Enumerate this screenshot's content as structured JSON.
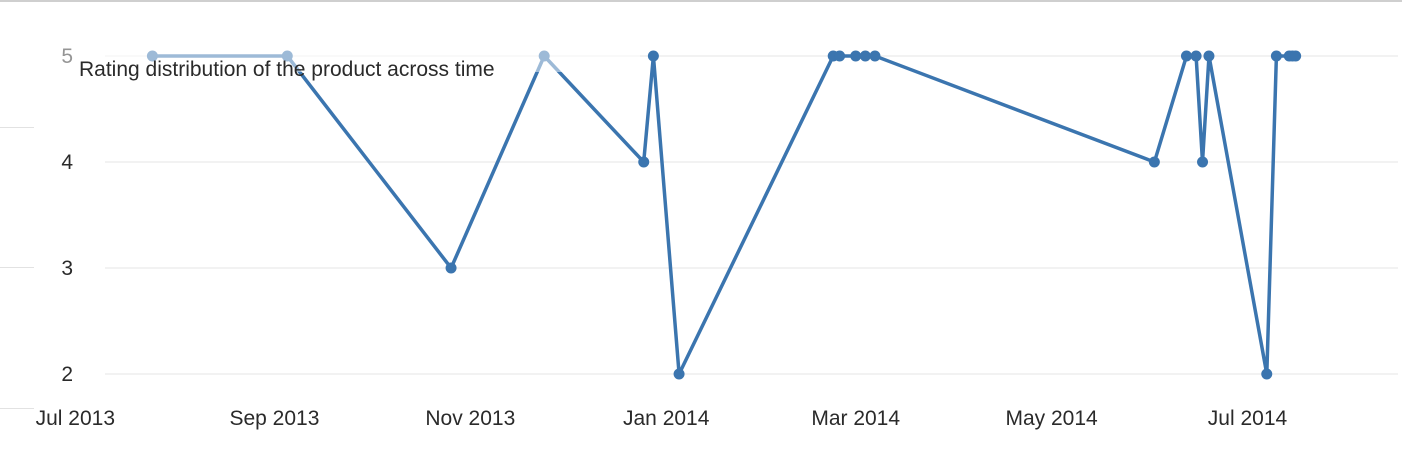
{
  "chart_data": {
    "type": "line",
    "title": "Rating distribution of the product across time",
    "xlabel": "",
    "ylabel": "",
    "ylim": [
      1.85,
      5.15
    ],
    "xlim": [
      "2013-06-20",
      "2014-08-15"
    ],
    "grid": true,
    "y_ticks": [
      2,
      3,
      4,
      5
    ],
    "x_ticks": [
      {
        "date": "2013-07-01",
        "label": "Jul 2013"
      },
      {
        "date": "2013-09-01",
        "label": "Sep 2013"
      },
      {
        "date": "2013-11-01",
        "label": "Nov 2013"
      },
      {
        "date": "2014-01-01",
        "label": "Jan 2014"
      },
      {
        "date": "2014-03-01",
        "label": "Mar 2014"
      },
      {
        "date": "2014-05-01",
        "label": "May 2014"
      },
      {
        "date": "2014-07-01",
        "label": "Jul 2014"
      }
    ],
    "series": [
      {
        "color": "#3b75af",
        "points": [
          {
            "x": "2013-07-25",
            "y": 5
          },
          {
            "x": "2013-09-05",
            "y": 5
          },
          {
            "x": "2013-10-26",
            "y": 3
          },
          {
            "x": "2013-11-24",
            "y": 5
          },
          {
            "x": "2013-12-25",
            "y": 4
          },
          {
            "x": "2013-12-28",
            "y": 5
          },
          {
            "x": "2014-01-05",
            "y": 2
          },
          {
            "x": "2014-02-22",
            "y": 5
          },
          {
            "x": "2014-02-24",
            "y": 5
          },
          {
            "x": "2014-03-01",
            "y": 5
          },
          {
            "x": "2014-03-04",
            "y": 5
          },
          {
            "x": "2014-03-07",
            "y": 5
          },
          {
            "x": "2014-06-02",
            "y": 4
          },
          {
            "x": "2014-06-12",
            "y": 5
          },
          {
            "x": "2014-06-15",
            "y": 5
          },
          {
            "x": "2014-06-17",
            "y": 4
          },
          {
            "x": "2014-06-19",
            "y": 5
          },
          {
            "x": "2014-07-07",
            "y": 2
          },
          {
            "x": "2014-07-10",
            "y": 5
          },
          {
            "x": "2014-07-14",
            "y": 5
          },
          {
            "x": "2014-07-15",
            "y": 5
          },
          {
            "x": "2014-07-16",
            "y": 5
          }
        ]
      }
    ]
  }
}
